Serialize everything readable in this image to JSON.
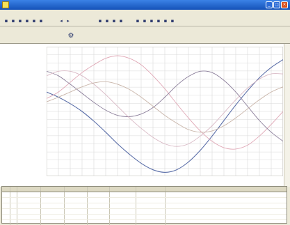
{
  "window": {
    "title": "",
    "document": "",
    "controls": [
      "_",
      "□",
      "×"
    ]
  },
  "menu": [
    "",
    "",
    "",
    "",
    "",
    ""
  ],
  "toolbar": {
    "buttons": [
      {
        "icon": "new-icon",
        "glyph": "▪"
      },
      {
        "icon": "open-icon",
        "glyph": "▪"
      },
      {
        "icon": "save-icon",
        "glyph": "▪"
      },
      {
        "icon": "print-icon",
        "glyph": "▪"
      },
      {
        "icon": "copy-icon",
        "glyph": "▪"
      },
      {
        "icon": "paste-icon",
        "glyph": "▪"
      },
      {
        "icon": "arrow-left-icon",
        "glyph": "◂"
      },
      {
        "icon": "arrow-right-icon",
        "glyph": "▸"
      },
      {
        "icon": "zoom-in-icon",
        "glyph": "▪"
      },
      {
        "icon": "zoom-out-icon",
        "glyph": "▪"
      },
      {
        "icon": "cursor-icon",
        "glyph": "▪"
      },
      {
        "icon": "marker-icon",
        "glyph": "▪"
      },
      {
        "icon": "grid-icon",
        "glyph": "▪"
      },
      {
        "icon": "settings-icon",
        "glyph": "▪"
      },
      {
        "icon": "table-icon",
        "glyph": "▪"
      },
      {
        "icon": "chart-icon",
        "glyph": "▪"
      },
      {
        "icon": "info-icon",
        "glyph": "▪"
      },
      {
        "icon": "help-icon",
        "glyph": "▪"
      }
    ]
  },
  "infobar": {
    "line1": "",
    "line2": "",
    "mid_text": ""
  },
  "chart": {
    "y_ticks_top": [
      "",
      "",
      "",
      "",
      "",
      "",
      "",
      "",
      "",
      ""
    ],
    "y_ticks_bottom": [
      "",
      "",
      "",
      "",
      "",
      "",
      ""
    ],
    "x_ticks": [
      "",
      "",
      "",
      "",
      "",
      "",
      "",
      "",
      "",
      "",
      "",
      "",
      "",
      "",
      "",
      "",
      "",
      "",
      "",
      "",
      ""
    ],
    "legend": [
      "",
      "",
      "",
      ""
    ]
  },
  "chart_data": {
    "type": "line",
    "title": "",
    "xlabel": "",
    "ylabel": "",
    "grid": true,
    "x": [
      0,
      1,
      2,
      3,
      4,
      5,
      6,
      7,
      8,
      9,
      10,
      11,
      12,
      13,
      14,
      15,
      16,
      17,
      18,
      19,
      20
    ],
    "ylim": [
      -1,
      1
    ],
    "series": [
      {
        "color": "#5a6ea8",
        "values": [
          0.3,
          0.22,
          0.12,
          0.0,
          -0.15,
          -0.32,
          -0.5,
          -0.66,
          -0.8,
          -0.9,
          -0.94,
          -0.9,
          -0.78,
          -0.6,
          -0.38,
          -0.14,
          0.1,
          0.32,
          0.52,
          0.68,
          0.8
        ]
      },
      {
        "color": "#e0a8b6",
        "values": [
          0.2,
          0.3,
          0.45,
          0.6,
          0.72,
          0.82,
          0.86,
          0.82,
          0.72,
          0.55,
          0.35,
          0.12,
          -0.1,
          -0.3,
          -0.46,
          -0.56,
          -0.58,
          -0.52,
          -0.38,
          -0.2,
          0.0
        ]
      },
      {
        "color": "#8b7e9a",
        "values": [
          0.62,
          0.55,
          0.42,
          0.28,
          0.14,
          0.02,
          -0.06,
          -0.08,
          -0.04,
          0.06,
          0.22,
          0.4,
          0.54,
          0.62,
          0.6,
          0.48,
          0.3,
          0.08,
          -0.14,
          -0.32,
          -0.46
        ]
      },
      {
        "color": "#d8b8c4",
        "values": [
          0.55,
          0.62,
          0.62,
          0.55,
          0.42,
          0.26,
          0.08,
          -0.1,
          -0.26,
          -0.4,
          -0.5,
          -0.54,
          -0.5,
          -0.38,
          -0.22,
          -0.02,
          0.18,
          0.36,
          0.5,
          0.58,
          0.58
        ]
      },
      {
        "color": "#c8b4a8",
        "values": [
          0.15,
          0.22,
          0.3,
          0.38,
          0.44,
          0.46,
          0.42,
          0.34,
          0.22,
          0.08,
          -0.06,
          -0.18,
          -0.28,
          -0.32,
          -0.3,
          -0.22,
          -0.1,
          0.04,
          0.18,
          0.3,
          0.38
        ]
      }
    ]
  },
  "table": {
    "headers": [
      "",
      "",
      "",
      "",
      "",
      "",
      "",
      "",
      ""
    ],
    "rows": [
      [
        "",
        "",
        "",
        "",
        "",
        "",
        "",
        "",
        ""
      ],
      [
        "",
        "",
        "",
        "",
        "",
        "",
        "",
        "",
        ""
      ],
      [
        "",
        "",
        "",
        "",
        "",
        "",
        "",
        "",
        ""
      ],
      [
        "",
        "",
        "",
        "",
        "",
        "",
        "",
        "",
        ""
      ],
      [
        "",
        "",
        "",
        "",
        "",
        "",
        "",
        "",
        ""
      ],
      [
        "",
        "",
        "",
        "",
        "",
        "",
        "",
        "",
        ""
      ]
    ]
  }
}
